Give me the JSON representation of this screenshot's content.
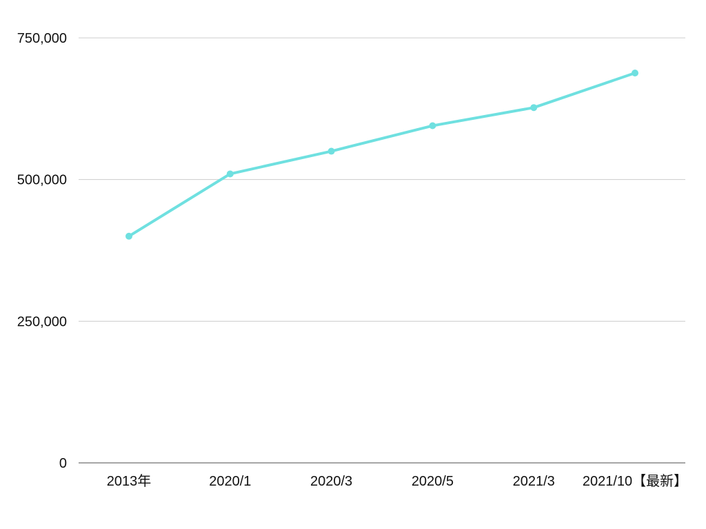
{
  "chart_data": {
    "type": "line",
    "title": "",
    "xlabel": "",
    "ylabel": "",
    "categories": [
      "2013年",
      "2020/1",
      "2020/3",
      "2020/5",
      "2021/3",
      "2021/10【最新】"
    ],
    "series": [
      {
        "values": [
          400000,
          510000,
          550000,
          595000,
          627000,
          688000
        ],
        "color": "#6fe0e0"
      }
    ],
    "ylim": [
      0,
      750000
    ],
    "yticks": [
      0,
      250000,
      500000,
      750000
    ],
    "ytick_labels": [
      "0",
      "250,000",
      "500,000",
      "750,000"
    ],
    "grid": true,
    "legend": "none"
  }
}
